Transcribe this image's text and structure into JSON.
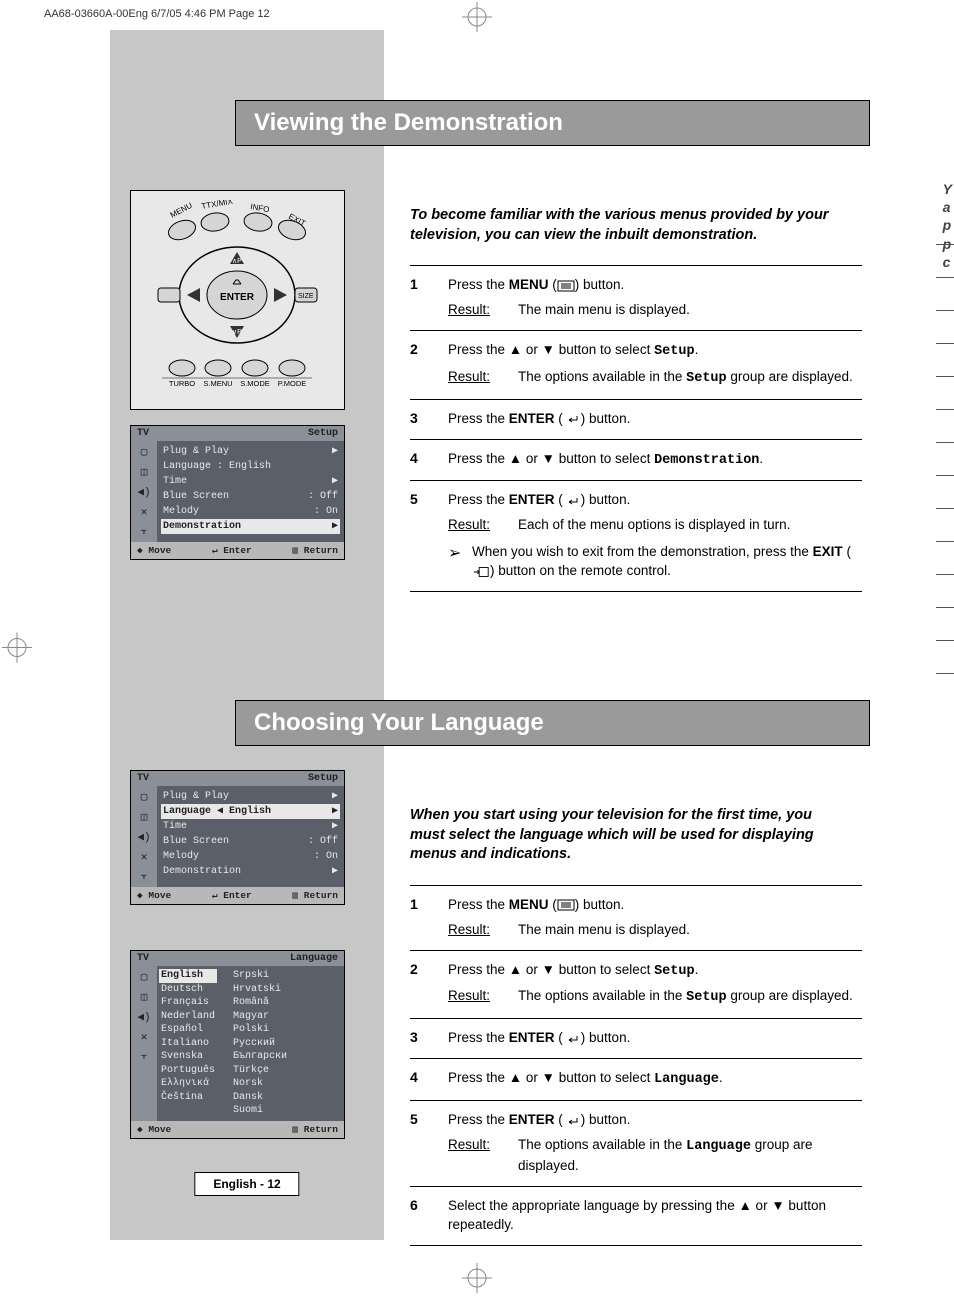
{
  "header_line": "AA68-03660A-00Eng  6/7/05  4:46 PM  Page 12",
  "footer": "English - 12",
  "right_snippet": [
    "Y",
    "a",
    "p",
    "p",
    "c"
  ],
  "colors": {
    "sidebar_gray": "#c7c7c7",
    "title_bg": "#9a9a9a",
    "menu_bg": "#5a5f6a",
    "menu_head_bg": "#8a8f98",
    "menu_foot_bg": "#b8b8b8",
    "menu_text": "#e8e8e8"
  },
  "section1": {
    "title": "Viewing the Demonstration",
    "intro": "To become familiar with the various menus provided by your television, you can view the inbuilt demonstration.",
    "steps": [
      {
        "n": "1",
        "text": "Press the <b>MENU</b> (<svg class='icon-inline' viewBox='0 0 18 12'><rect x='1' y='1' width='16' height='10' fill='none' stroke='#000'/><line x1='4' y1='4' x2='14' y2='4' stroke='#000'/><line x1='4' y1='6' x2='14' y2='6' stroke='#000'/><line x1='4' y1='8' x2='14' y2='8' stroke='#000'/></svg>) button.",
        "result": "The main menu is displayed."
      },
      {
        "n": "2",
        "text": "Press the ▲ or ▼ button to select <span class='mono'>Setup</span>.",
        "result": "The options available in the <span class='mono'>Setup</span> group are displayed."
      },
      {
        "n": "3",
        "text": "Press the <b>ENTER</b> (<svg class='icon-inline' viewBox='0 0 18 12'><path d='M14 3 v4 h-8 m0 0 l3 -2 m-3 2 l3 2' fill='none' stroke='#000'/></svg>) button."
      },
      {
        "n": "4",
        "text": "Press the ▲ or ▼ button to select <span class='mono'>Demonstration</span>."
      },
      {
        "n": "5",
        "text": "Press the <b>ENTER</b> (<svg class='icon-inline' viewBox='0 0 18 12'><path d='M14 3 v4 h-8 m0 0 l3 -2 m-3 2 l3 2' fill='none' stroke='#000'/></svg>) button.",
        "result": "Each of the menu options is displayed in turn.",
        "note": "When you wish to exit from the demonstration, press the <b>EXIT</b> (<svg class='icon-inline' viewBox='0 0 20 12'><rect x='8' y='1' width='10' height='10' fill='none' stroke='#000'/><path d='M2 6 h6 m0 0 l-2 -2 m2 2 l-2 2' fill='none' stroke='#000'/></svg>) button on the remote control."
      }
    ]
  },
  "section2": {
    "title": "Choosing Your Language",
    "intro": "When you start using your television for the first time, you must select the language which will be used for displaying menus and indications.",
    "steps": [
      {
        "n": "1",
        "text": "Press the <b>MENU</b> (<svg class='icon-inline' viewBox='0 0 18 12'><rect x='1' y='1' width='16' height='10' fill='none' stroke='#000'/><line x1='4' y1='4' x2='14' y2='4' stroke='#000'/><line x1='4' y1='6' x2='14' y2='6' stroke='#000'/><line x1='4' y1='8' x2='14' y2='8' stroke='#000'/></svg>) button.",
        "result": "The main menu is displayed."
      },
      {
        "n": "2",
        "text": "Press the ▲ or ▼ button to select <span class='mono'>Setup</span>.",
        "result": "The options available in the <span class='mono'>Setup</span> group are displayed."
      },
      {
        "n": "3",
        "text": "Press the <b>ENTER</b> (<svg class='icon-inline' viewBox='0 0 18 12'><path d='M14 3 v4 h-8 m0 0 l3 -2 m-3 2 l3 2' fill='none' stroke='#000'/></svg>) button."
      },
      {
        "n": "4",
        "text": "Press the ▲ or ▼ button to select <span class='mono'>Language</span>."
      },
      {
        "n": "5",
        "text": "Press the <b>ENTER</b> (<svg class='icon-inline' viewBox='0 0 18 12'><path d='M14 3 v4 h-8 m0 0 l3 -2 m-3 2 l3 2' fill='none' stroke='#000'/></svg>) button.",
        "result": "The options available in the <span class='mono'>Language</span> group are displayed."
      },
      {
        "n": "6",
        "text": "Select the appropriate language by pressing the ▲ or ▼ button repeatedly."
      }
    ]
  },
  "menu1": {
    "head_left": "TV",
    "head_right": "Setup",
    "items": [
      {
        "l": "Plug & Play",
        "r": "▶"
      },
      {
        "l": "Language  : English",
        "r": ""
      },
      {
        "l": "Time",
        "r": "▶"
      },
      {
        "l": "Blue Screen",
        "r": ": Off"
      },
      {
        "l": "Melody",
        "r": ": On"
      },
      {
        "l": "Demonstration",
        "r": "▶",
        "hl": true
      }
    ],
    "foot": [
      "◆ Move",
      "↵ Enter",
      "▥ Return"
    ]
  },
  "menu2": {
    "head_left": "TV",
    "head_right": "Setup",
    "items": [
      {
        "l": "Plug & Play",
        "r": "▶"
      },
      {
        "l": "Language  ◀ English",
        "r": "▶",
        "hl": true
      },
      {
        "l": "Time",
        "r": "▶"
      },
      {
        "l": "Blue Screen",
        "r": ": Off"
      },
      {
        "l": "Melody",
        "r": ": On"
      },
      {
        "l": "Demonstration",
        "r": "▶"
      }
    ],
    "foot": [
      "◆ Move",
      "↵ Enter",
      "▥ Return"
    ]
  },
  "menu3": {
    "head_left": "TV",
    "head_right": "Language",
    "langs_col1": [
      "English",
      "Deutsch",
      "Français",
      "Nederland",
      "Español",
      "Italiano",
      "Svenska",
      "Português",
      "Ελληνικά",
      "Čeština"
    ],
    "langs_col2": [
      "Srpski",
      "Hrvatski",
      "Română",
      "Magyar",
      "Polski",
      "Русский",
      "Български",
      "Türkçe",
      "Norsk",
      "Dansk",
      "Suomi"
    ],
    "foot": [
      "◆ Move",
      "▥ Return"
    ]
  },
  "remote_labels": {
    "top_left": "MENU",
    "top_mid_l": "TTX/MIX",
    "top_mid_r": "INFO",
    "top_right": "EXIT",
    "center": "ENTER",
    "left_side": "◄",
    "right_side": "SIZE",
    "bottom": [
      "TURBO",
      "S.MENU",
      "S.MODE",
      "P.MODE"
    ]
  },
  "result_label": "Result:"
}
